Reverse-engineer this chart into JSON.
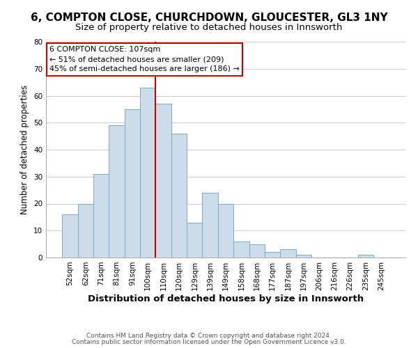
{
  "title": "6, COMPTON CLOSE, CHURCHDOWN, GLOUCESTER, GL3 1NY",
  "subtitle": "Size of property relative to detached houses in Innsworth",
  "xlabel": "Distribution of detached houses by size in Innsworth",
  "ylabel": "Number of detached properties",
  "bar_labels": [
    "52sqm",
    "62sqm",
    "71sqm",
    "81sqm",
    "91sqm",
    "100sqm",
    "110sqm",
    "120sqm",
    "129sqm",
    "139sqm",
    "149sqm",
    "158sqm",
    "168sqm",
    "177sqm",
    "187sqm",
    "197sqm",
    "206sqm",
    "216sqm",
    "226sqm",
    "235sqm",
    "245sqm"
  ],
  "bar_values": [
    16,
    20,
    31,
    49,
    55,
    63,
    57,
    46,
    13,
    24,
    20,
    6,
    5,
    2,
    3,
    1,
    0,
    0,
    0,
    1,
    0
  ],
  "bar_color": "#ccdce8",
  "bar_edge_color": "#7aaac8",
  "vline_color": "#cc0000",
  "annotation_box_text": "6 COMPTON CLOSE: 107sqm\n← 51% of detached houses are smaller (209)\n45% of semi-detached houses are larger (186) →",
  "ylim": [
    0,
    80
  ],
  "yticks": [
    0,
    10,
    20,
    30,
    40,
    50,
    60,
    70,
    80
  ],
  "footer_line1": "Contains HM Land Registry data © Crown copyright and database right 2024.",
  "footer_line2": "Contains public sector information licensed under the Open Government Licence v3.0.",
  "background_color": "#ffffff",
  "grid_color": "#cccccc",
  "title_fontsize": 11,
  "subtitle_fontsize": 9.5,
  "xlabel_fontsize": 9.5,
  "ylabel_fontsize": 8.5,
  "tick_fontsize": 7.5,
  "annotation_fontsize": 8,
  "footer_fontsize": 6.5
}
